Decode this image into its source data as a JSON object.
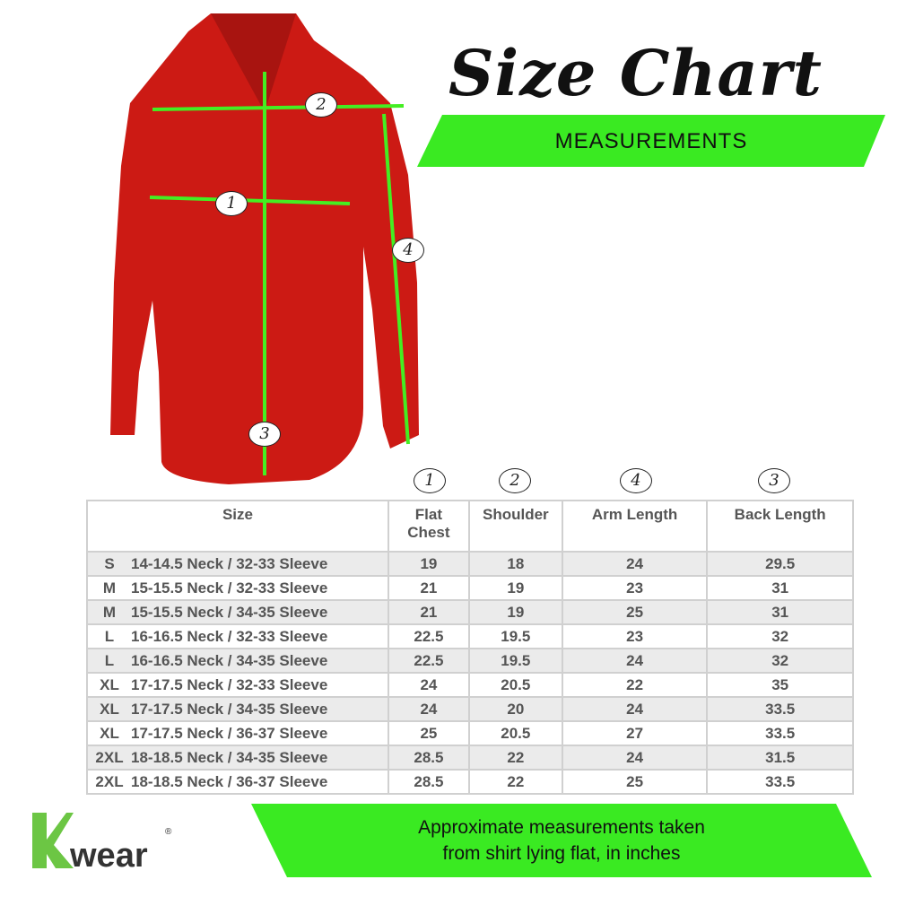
{
  "title": "Size Chart",
  "subtitle_banner": "MEASUREMENTS",
  "shirt": {
    "color": "#cc1a14",
    "line_color": "#44ee22",
    "markers": [
      "1",
      "2",
      "3",
      "4"
    ]
  },
  "column_markers": [
    "1",
    "2",
    "4",
    "3"
  ],
  "table": {
    "headers": [
      "Size",
      "Flat Chest",
      "Shoulder",
      "Arm Length",
      "Back Length"
    ],
    "rows": [
      {
        "size": "S",
        "desc": "14-14.5 Neck / 32-33 Sleeve",
        "chest": "19",
        "shoulder": "18",
        "arm": "24",
        "back": "29.5"
      },
      {
        "size": "M",
        "desc": "15-15.5 Neck / 32-33 Sleeve",
        "chest": "21",
        "shoulder": "19",
        "arm": "23",
        "back": "31"
      },
      {
        "size": "M",
        "desc": "15-15.5 Neck / 34-35 Sleeve",
        "chest": "21",
        "shoulder": "19",
        "arm": "25",
        "back": "31"
      },
      {
        "size": "L",
        "desc": "16-16.5 Neck / 32-33 Sleeve",
        "chest": "22.5",
        "shoulder": "19.5",
        "arm": "23",
        "back": "32"
      },
      {
        "size": "L",
        "desc": "16-16.5 Neck / 34-35 Sleeve",
        "chest": "22.5",
        "shoulder": "19.5",
        "arm": "24",
        "back": "32"
      },
      {
        "size": "XL",
        "desc": "17-17.5 Neck / 32-33 Sleeve",
        "chest": "24",
        "shoulder": "20.5",
        "arm": "22",
        "back": "35"
      },
      {
        "size": "XL",
        "desc": "17-17.5 Neck / 34-35 Sleeve",
        "chest": "24",
        "shoulder": "20",
        "arm": "24",
        "back": "33.5"
      },
      {
        "size": "XL",
        "desc": "17-17.5 Neck / 36-37 Sleeve",
        "chest": "25",
        "shoulder": "20.5",
        "arm": "27",
        "back": "33.5"
      },
      {
        "size": "2XL",
        "desc": "18-18.5 Neck / 34-35 Sleeve",
        "chest": "28.5",
        "shoulder": "22",
        "arm": "24",
        "back": "31.5"
      },
      {
        "size": "2XL",
        "desc": "18-18.5 Neck / 36-37 Sleeve",
        "chest": "28.5",
        "shoulder": "22",
        "arm": "25",
        "back": "33.5"
      }
    ]
  },
  "footer": {
    "line1": "Approximate measurements taken",
    "line2": "from shirt lying flat, in inches"
  },
  "logo": {
    "text": "Kwear",
    "mark": "®"
  },
  "colors": {
    "banner_green": "#3aea22",
    "logo_green": "#6cc644"
  }
}
